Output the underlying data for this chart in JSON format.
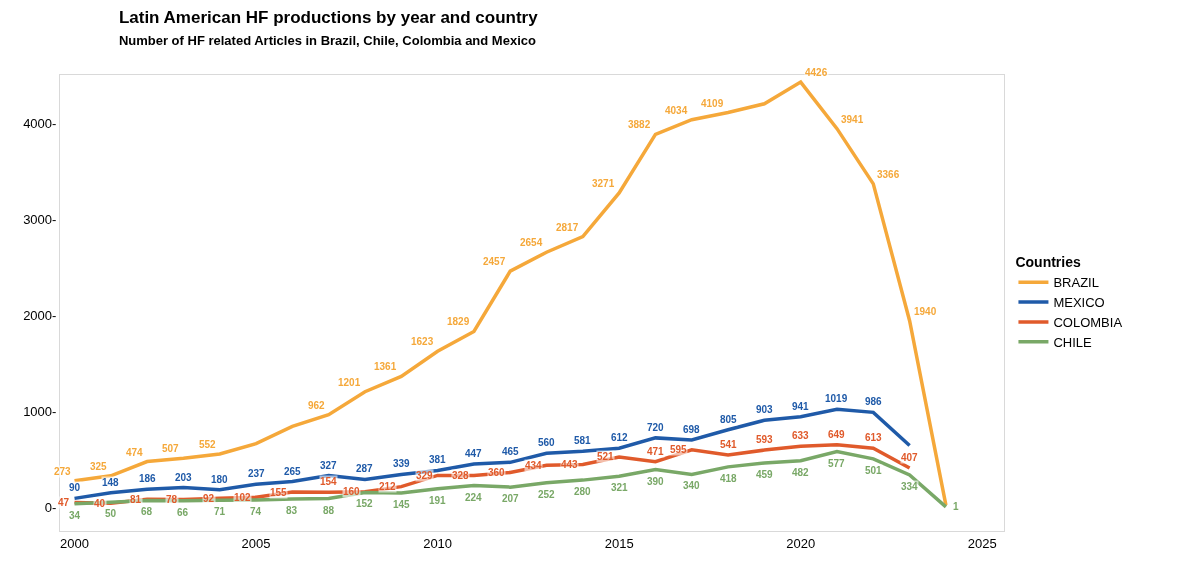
{
  "chart_data": {
    "type": "line",
    "title": "Latin American HF productions by year and country",
    "subtitle": "Number of HF related Articles in Brazil, Chile, Colombia and Mexico",
    "legend_title": "Countries",
    "legend": "right",
    "marker": "none",
    "line_style": "solid",
    "x": [
      2000,
      2001,
      2002,
      2003,
      2004,
      2005,
      2006,
      2007,
      2008,
      2009,
      2010,
      2011,
      2012,
      2013,
      2014,
      2015,
      2016,
      2017,
      2018,
      2019,
      2020,
      2021,
      2022,
      2023,
      2024
    ],
    "xlim": [
      1999.6,
      2025.6
    ],
    "xticks": [
      2000,
      2005,
      2010,
      2015,
      2020,
      2025
    ],
    "ylim": [
      -250,
      4500
    ],
    "yticks": [
      {
        "value": 0,
        "label": "0-"
      },
      {
        "value": 1000,
        "label": "1000-"
      },
      {
        "value": 2000,
        "label": "2000-"
      },
      {
        "value": 3000,
        "label": "3000-"
      },
      {
        "value": 4000,
        "label": "4000-"
      }
    ],
    "series": [
      {
        "name": "BRAZIL",
        "color": "#f5a83a",
        "values": [
          273,
          325,
          474,
          507,
          552,
          660,
          840,
          962,
          1201,
          1361,
          1623,
          1829,
          2457,
          2654,
          2817,
          3271,
          3882,
          4034,
          4109,
          4200,
          4426,
          3941,
          3366,
          1940,
          20
        ],
        "value_labels": [
          "273",
          "325",
          "474",
          "507",
          "552",
          null,
          null,
          "962",
          "1201",
          "1361",
          "1623",
          "1829",
          "2457",
          "2654",
          "2817",
          "3271",
          "3882",
          "4034",
          "4109",
          null,
          "4426",
          "3941",
          "3366",
          "1940",
          null
        ]
      },
      {
        "name": "MEXICO",
        "color": "#1f5aa8",
        "values": [
          90,
          148,
          186,
          203,
          180,
          237,
          265,
          327,
          287,
          339,
          381,
          447,
          465,
          560,
          581,
          612,
          720,
          698,
          805,
          903,
          941,
          1019,
          986,
          640,
          null
        ],
        "value_labels": [
          "90",
          "148",
          "186",
          "203",
          "180",
          "237",
          "265",
          "327",
          "287",
          "339",
          "381",
          "447",
          "465",
          "560",
          "581",
          "612",
          "720",
          "698",
          "805",
          "903",
          "941",
          "1019",
          "986",
          null,
          null
        ]
      },
      {
        "name": "COLOMBIA",
        "color": "#e05a2b",
        "values": [
          47,
          40,
          81,
          78,
          92,
          102,
          155,
          154,
          160,
          212,
          329,
          328,
          360,
          434,
          443,
          521,
          471,
          595,
          541,
          593,
          633,
          649,
          613,
          407,
          null
        ],
        "value_labels": [
          "47",
          "40",
          "81",
          "78",
          "92",
          "102",
          "155",
          "154",
          "160",
          "212",
          "329",
          "328",
          "360",
          "434",
          "443",
          "521",
          "471",
          "595",
          "541",
          "593",
          "633",
          "649",
          "613",
          "407",
          null
        ]
      },
      {
        "name": "CHILE",
        "color": "#79a867",
        "values": [
          34,
          50,
          68,
          66,
          71,
          74,
          83,
          88,
          152,
          145,
          191,
          224,
          207,
          252,
          280,
          321,
          390,
          340,
          418,
          459,
          482,
          577,
          501,
          334,
          1
        ],
        "value_labels": [
          "34",
          "50",
          "68",
          "66",
          "71",
          "74",
          "83",
          "88",
          "152",
          "145",
          "191",
          "224",
          "207",
          "252",
          "280",
          "321",
          "390",
          "340",
          "418",
          "459",
          "482",
          "577",
          "501",
          "334",
          "1"
        ]
      }
    ]
  }
}
